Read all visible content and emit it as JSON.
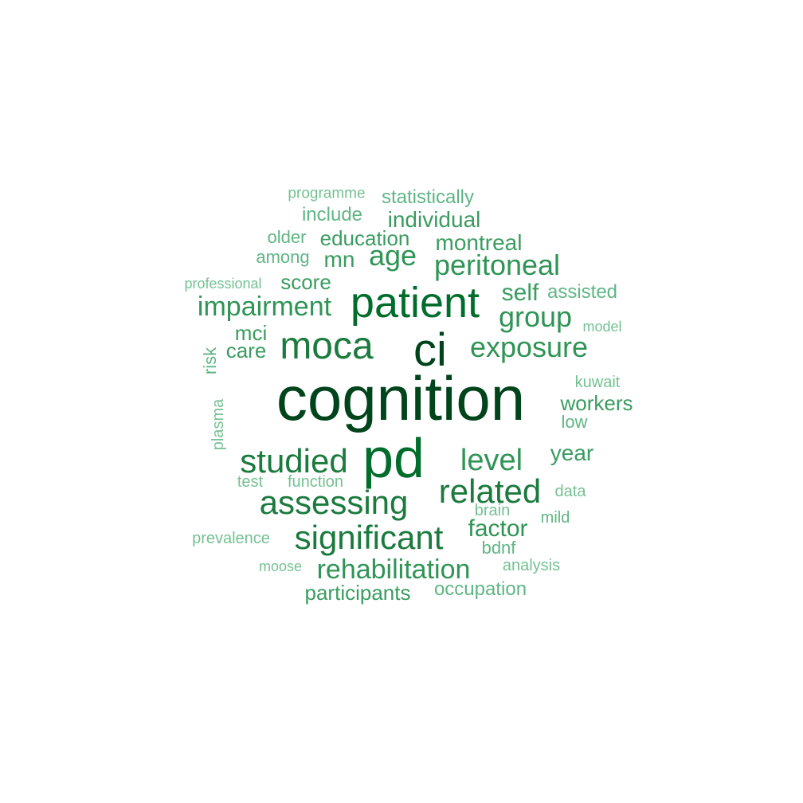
{
  "word_cloud": {
    "words": [
      {
        "text": "cognition",
        "color": "#00441b"
      },
      {
        "text": "ci",
        "color": "#00441b"
      },
      {
        "text": "pd",
        "color": "#006d2c"
      },
      {
        "text": "patient",
        "color": "#006d2c"
      },
      {
        "text": "moca",
        "color": "#1b7a3e"
      },
      {
        "text": "studied",
        "color": "#1b7a3e"
      },
      {
        "text": "assessing",
        "color": "#1b7a3e"
      },
      {
        "text": "related",
        "color": "#1b7a3e"
      },
      {
        "text": "significant",
        "color": "#1b7a3e"
      },
      {
        "text": "level",
        "color": "#2f9456"
      },
      {
        "text": "impairment",
        "color": "#2f9456"
      },
      {
        "text": "peritoneal",
        "color": "#2f9456"
      },
      {
        "text": "exposure",
        "color": "#2f9456"
      },
      {
        "text": "group",
        "color": "#2f9456"
      },
      {
        "text": "age",
        "color": "#2f9456"
      },
      {
        "text": "rehabilitation",
        "color": "#2f9456"
      },
      {
        "text": "factor",
        "color": "#2f9456"
      },
      {
        "text": "self",
        "color": "#3a9c60"
      },
      {
        "text": "individual",
        "color": "#3a9c60"
      },
      {
        "text": "montreal",
        "color": "#3a9c60"
      },
      {
        "text": "education",
        "color": "#3a9c60"
      },
      {
        "text": "mn",
        "color": "#3a9c60"
      },
      {
        "text": "score",
        "color": "#3a9c60"
      },
      {
        "text": "year",
        "color": "#3a9c60"
      },
      {
        "text": "workers",
        "color": "#3a9c60"
      },
      {
        "text": "participants",
        "color": "#3a9c60"
      },
      {
        "text": "mci",
        "color": "#3a9c60"
      },
      {
        "text": "care",
        "color": "#3a9c60"
      },
      {
        "text": "occupation",
        "color": "#5fb585"
      },
      {
        "text": "statistically",
        "color": "#5fb585"
      },
      {
        "text": "include",
        "color": "#5fb585"
      },
      {
        "text": "older",
        "color": "#5fb585"
      },
      {
        "text": "among",
        "color": "#5fb585"
      },
      {
        "text": "assisted",
        "color": "#5fb585"
      },
      {
        "text": "low",
        "color": "#5fb585"
      },
      {
        "text": "risk",
        "color": "#5fb585"
      },
      {
        "text": "bdnf",
        "color": "#5fb585"
      },
      {
        "text": "mild",
        "color": "#5fb585"
      },
      {
        "text": "analysis",
        "color": "#74c193"
      },
      {
        "text": "prevalence",
        "color": "#74c193"
      },
      {
        "text": "programme",
        "color": "#74c193"
      },
      {
        "text": "professional",
        "color": "#74c193"
      },
      {
        "text": "model",
        "color": "#74c193"
      },
      {
        "text": "kuwait",
        "color": "#74c193"
      },
      {
        "text": "plasma",
        "color": "#74c193"
      },
      {
        "text": "test",
        "color": "#74c193"
      },
      {
        "text": "function",
        "color": "#74c193"
      },
      {
        "text": "data",
        "color": "#74c193"
      },
      {
        "text": "brain",
        "color": "#74c193"
      },
      {
        "text": "moose",
        "color": "#74c193"
      }
    ]
  }
}
